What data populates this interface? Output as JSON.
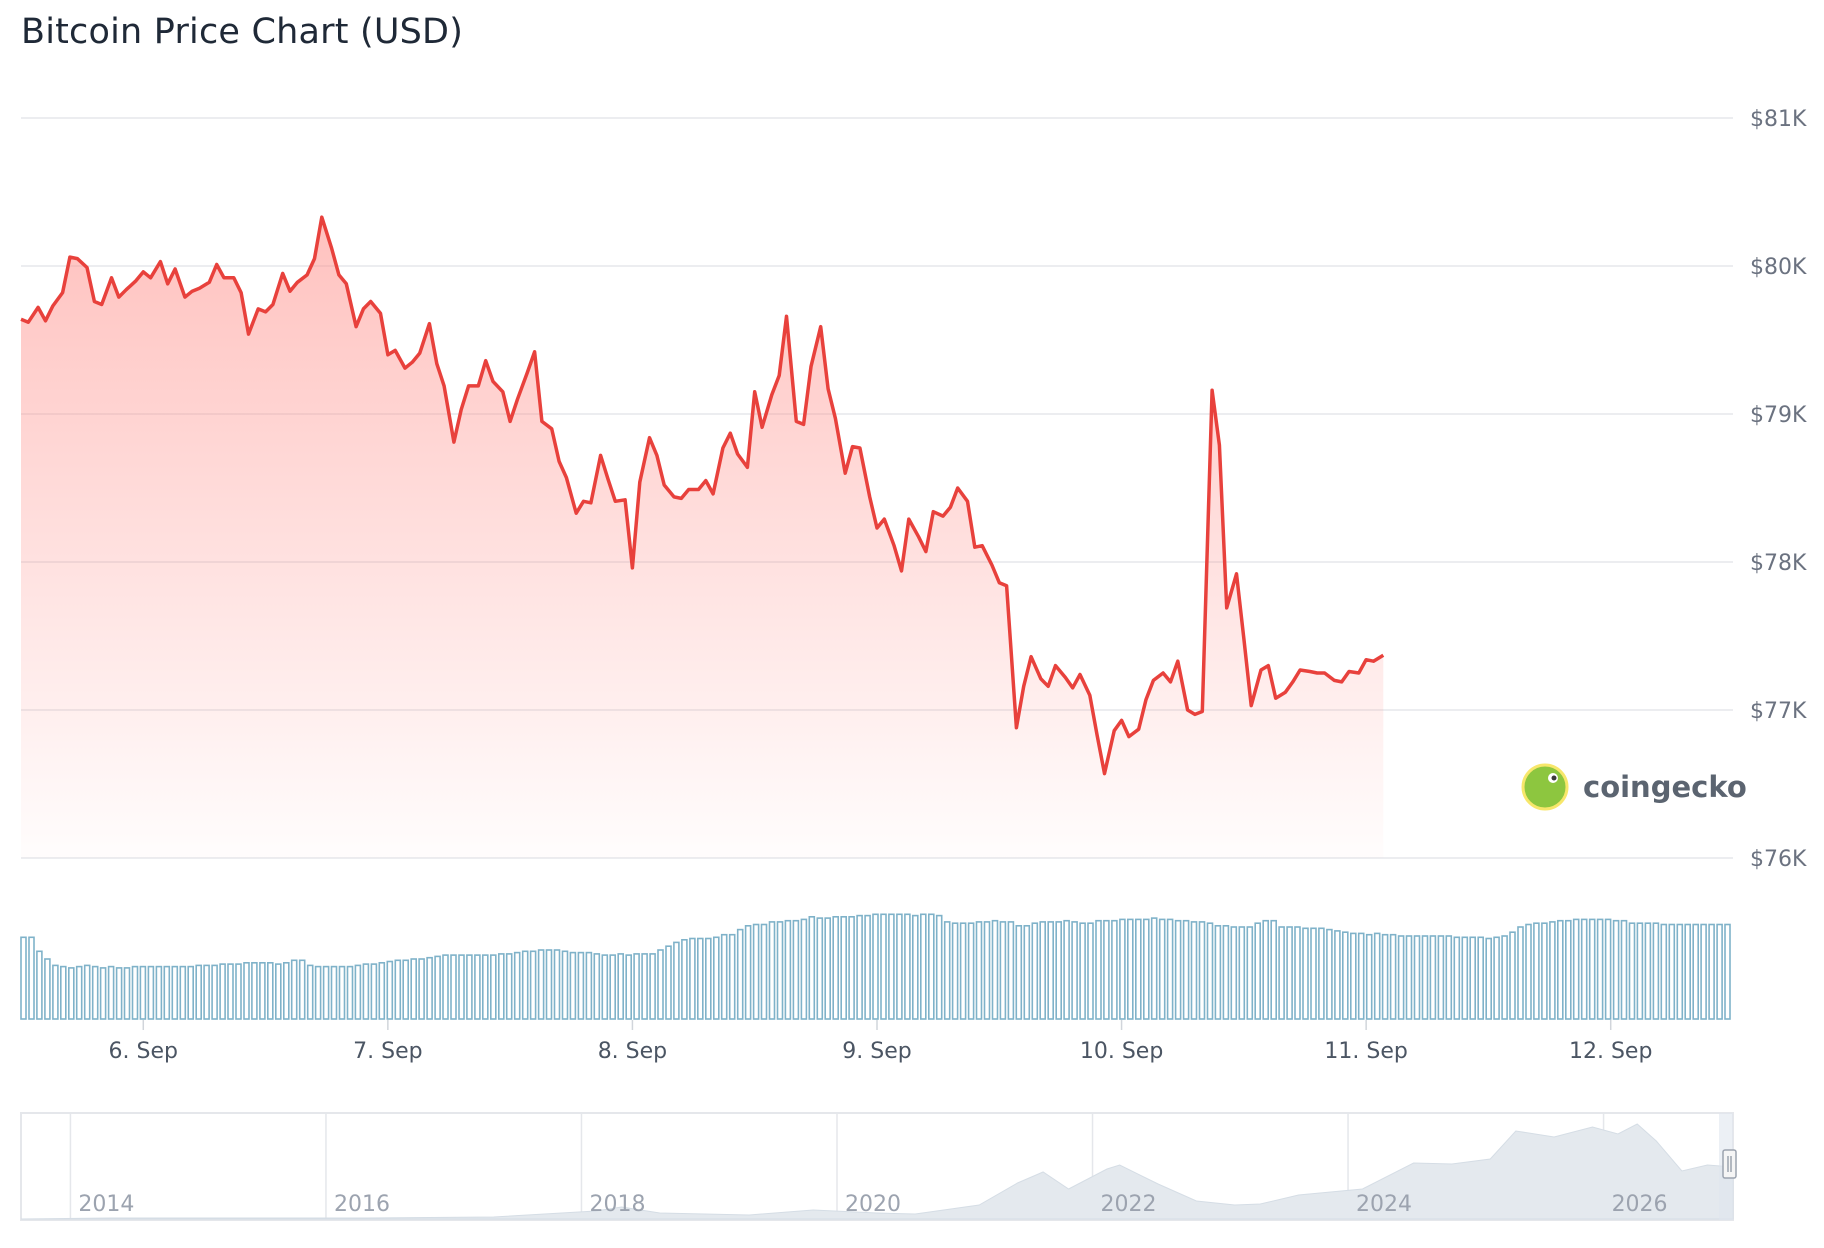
{
  "title": "Bitcoin Price Chart (USD)",
  "watermark": "coingecko",
  "colors": {
    "line": "#e8413c",
    "area_top": "#ff8f8a",
    "grid": "#e5e7eb",
    "volume_bar": "#7fb2c9",
    "navigator_fill": "#e4e9ee"
  },
  "chart_data": [
    {
      "type": "line",
      "title": "Bitcoin Price Chart (USD)",
      "ylim": [
        76000,
        81000
      ],
      "ytick_labels": [
        "$76K",
        "$77K",
        "$78K",
        "$79K",
        "$80K",
        "$81K"
      ],
      "ytick_values": [
        76000,
        77000,
        78000,
        79000,
        80000,
        81000
      ],
      "xlim": [
        5.5,
        12.5
      ],
      "xtick_labels": [
        "6. Sep",
        "7. Sep",
        "8. Sep",
        "9. Sep",
        "10. Sep",
        "11. Sep",
        "12. Sep"
      ],
      "xtick_values": [
        6,
        7,
        8,
        9,
        10,
        11,
        12
      ],
      "x_unit": "day of September",
      "grid": true,
      "legend": "none",
      "series": [
        {
          "points": [
            [
              5.5,
              79640
            ],
            [
              5.53,
              79620
            ],
            [
              5.57,
              79720
            ],
            [
              5.6,
              79630
            ],
            [
              5.63,
              79730
            ],
            [
              5.67,
              79820
            ],
            [
              5.7,
              80060
            ],
            [
              5.73,
              80050
            ],
            [
              5.77,
              79990
            ],
            [
              5.8,
              79760
            ],
            [
              5.83,
              79740
            ],
            [
              5.87,
              79920
            ],
            [
              5.9,
              79790
            ],
            [
              5.93,
              79840
            ],
            [
              5.97,
              79900
            ],
            [
              6.0,
              79960
            ],
            [
              6.03,
              79920
            ],
            [
              6.07,
              80030
            ],
            [
              6.1,
              79880
            ],
            [
              6.13,
              79980
            ],
            [
              6.17,
              79790
            ],
            [
              6.2,
              79830
            ],
            [
              6.23,
              79850
            ],
            [
              6.27,
              79890
            ],
            [
              6.3,
              80010
            ],
            [
              6.33,
              79920
            ],
            [
              6.37,
              79920
            ],
            [
              6.4,
              79820
            ],
            [
              6.43,
              79540
            ],
            [
              6.47,
              79710
            ],
            [
              6.5,
              79690
            ],
            [
              6.53,
              79740
            ],
            [
              6.57,
              79950
            ],
            [
              6.6,
              79830
            ],
            [
              6.63,
              79890
            ],
            [
              6.67,
              79940
            ],
            [
              6.7,
              80050
            ],
            [
              6.73,
              80330
            ],
            [
              6.77,
              80120
            ],
            [
              6.8,
              79940
            ],
            [
              6.83,
              79880
            ],
            [
              6.87,
              79590
            ],
            [
              6.9,
              79710
            ],
            [
              6.93,
              79760
            ],
            [
              6.97,
              79680
            ],
            [
              7.0,
              79400
            ],
            [
              7.03,
              79430
            ],
            [
              7.07,
              79310
            ],
            [
              7.1,
              79350
            ],
            [
              7.13,
              79410
            ],
            [
              7.17,
              79610
            ],
            [
              7.2,
              79340
            ],
            [
              7.23,
              79190
            ],
            [
              7.27,
              78810
            ],
            [
              7.3,
              79030
            ],
            [
              7.33,
              79190
            ],
            [
              7.37,
              79190
            ],
            [
              7.4,
              79360
            ],
            [
              7.43,
              79220
            ],
            [
              7.47,
              79150
            ],
            [
              7.5,
              78950
            ],
            [
              7.53,
              79100
            ],
            [
              7.57,
              79280
            ],
            [
              7.6,
              79420
            ],
            [
              7.63,
              78950
            ],
            [
              7.67,
              78900
            ],
            [
              7.7,
              78680
            ],
            [
              7.73,
              78570
            ],
            [
              7.77,
              78330
            ],
            [
              7.8,
              78410
            ],
            [
              7.83,
              78400
            ],
            [
              7.87,
              78720
            ],
            [
              7.9,
              78560
            ],
            [
              7.93,
              78410
            ],
            [
              7.97,
              78420
            ],
            [
              8.0,
              77960
            ],
            [
              8.03,
              78540
            ],
            [
              8.07,
              78840
            ],
            [
              8.1,
              78720
            ],
            [
              8.13,
              78520
            ],
            [
              8.17,
              78440
            ],
            [
              8.2,
              78430
            ],
            [
              8.23,
              78490
            ],
            [
              8.27,
              78490
            ],
            [
              8.3,
              78550
            ],
            [
              8.33,
              78460
            ],
            [
              8.37,
              78770
            ],
            [
              8.4,
              78870
            ],
            [
              8.43,
              78730
            ],
            [
              8.47,
              78640
            ],
            [
              8.5,
              79150
            ],
            [
              8.53,
              78910
            ],
            [
              8.57,
              79130
            ],
            [
              8.6,
              79260
            ],
            [
              8.63,
              79660
            ],
            [
              8.67,
              78950
            ],
            [
              8.7,
              78930
            ],
            [
              8.73,
              79320
            ],
            [
              8.77,
              79590
            ],
            [
              8.8,
              79170
            ],
            [
              8.83,
              78970
            ],
            [
              8.87,
              78600
            ],
            [
              8.9,
              78780
            ],
            [
              8.93,
              78770
            ],
            [
              8.97,
              78440
            ],
            [
              9.0,
              78230
            ],
            [
              9.03,
              78290
            ],
            [
              9.07,
              78110
            ],
            [
              9.1,
              77940
            ],
            [
              9.13,
              78290
            ],
            [
              9.17,
              78170
            ],
            [
              9.2,
              78070
            ],
            [
              9.23,
              78340
            ],
            [
              9.27,
              78310
            ],
            [
              9.3,
              78370
            ],
            [
              9.33,
              78500
            ],
            [
              9.37,
              78410
            ],
            [
              9.4,
              78100
            ],
            [
              9.43,
              78110
            ],
            [
              9.47,
              77980
            ],
            [
              9.5,
              77860
            ],
            [
              9.53,
              77840
            ],
            [
              9.57,
              76880
            ],
            [
              9.6,
              77160
            ],
            [
              9.63,
              77360
            ],
            [
              9.67,
              77210
            ],
            [
              9.7,
              77160
            ],
            [
              9.73,
              77300
            ],
            [
              9.77,
              77220
            ],
            [
              9.8,
              77150
            ],
            [
              9.83,
              77240
            ],
            [
              9.87,
              77100
            ],
            [
              9.9,
              76830
            ],
            [
              9.93,
              76570
            ],
            [
              9.97,
              76860
            ],
            [
              10.0,
              76930
            ],
            [
              10.03,
              76820
            ],
            [
              10.07,
              76870
            ],
            [
              10.1,
              77070
            ],
            [
              10.13,
              77200
            ],
            [
              10.17,
              77250
            ],
            [
              10.2,
              77190
            ],
            [
              10.23,
              77330
            ],
            [
              10.27,
              77000
            ],
            [
              10.3,
              76970
            ],
            [
              10.33,
              76990
            ],
            [
              10.37,
              79160
            ],
            [
              10.4,
              78790
            ],
            [
              10.43,
              77690
            ],
            [
              10.47,
              77920
            ],
            [
              10.5,
              77480
            ],
            [
              10.53,
              77030
            ],
            [
              10.57,
              77270
            ],
            [
              10.6,
              77300
            ],
            [
              10.63,
              77080
            ],
            [
              10.67,
              77120
            ],
            [
              10.7,
              77190
            ],
            [
              10.73,
              77270
            ],
            [
              10.77,
              77260
            ],
            [
              10.8,
              77250
            ],
            [
              10.83,
              77250
            ],
            [
              10.87,
              77200
            ],
            [
              10.9,
              77190
            ],
            [
              10.93,
              77260
            ],
            [
              10.97,
              77250
            ],
            [
              11.0,
              77340
            ],
            [
              11.03,
              77330
            ],
            [
              11.07,
              77370
            ]
          ]
        }
      ]
    },
    {
      "type": "bar",
      "title": "",
      "ylim": [
        0,
        1
      ],
      "x_unit": "day of September",
      "xlim": [
        5.5,
        12.5
      ],
      "values_relative": [
        0.64,
        0.64,
        0.53,
        0.47,
        0.42,
        0.41,
        0.4,
        0.41,
        0.42,
        0.41,
        0.4,
        0.41,
        0.4,
        0.4,
        0.41,
        0.41,
        0.41,
        0.41,
        0.41,
        0.41,
        0.41,
        0.41,
        0.42,
        0.42,
        0.42,
        0.43,
        0.43,
        0.43,
        0.44,
        0.44,
        0.44,
        0.44,
        0.43,
        0.44,
        0.46,
        0.46,
        0.42,
        0.41,
        0.41,
        0.41,
        0.41,
        0.41,
        0.42,
        0.43,
        0.43,
        0.44,
        0.45,
        0.46,
        0.46,
        0.47,
        0.47,
        0.48,
        0.49,
        0.5,
        0.5,
        0.5,
        0.5,
        0.5,
        0.5,
        0.5,
        0.51,
        0.51,
        0.52,
        0.53,
        0.53,
        0.54,
        0.54,
        0.54,
        0.53,
        0.52,
        0.52,
        0.52,
        0.51,
        0.5,
        0.5,
        0.51,
        0.5,
        0.51,
        0.51,
        0.51,
        0.54,
        0.57,
        0.6,
        0.62,
        0.63,
        0.63,
        0.63,
        0.64,
        0.66,
        0.66,
        0.7,
        0.73,
        0.74,
        0.74,
        0.76,
        0.76,
        0.77,
        0.77,
        0.78,
        0.8,
        0.79,
        0.79,
        0.8,
        0.8,
        0.8,
        0.81,
        0.81,
        0.82,
        0.82,
        0.82,
        0.82,
        0.82,
        0.81,
        0.82,
        0.82,
        0.81,
        0.76,
        0.75,
        0.75,
        0.75,
        0.76,
        0.76,
        0.77,
        0.76,
        0.76,
        0.73,
        0.73,
        0.75,
        0.76,
        0.76,
        0.76,
        0.77,
        0.76,
        0.75,
        0.75,
        0.77,
        0.77,
        0.77,
        0.78,
        0.78,
        0.78,
        0.78,
        0.79,
        0.78,
        0.78,
        0.77,
        0.77,
        0.76,
        0.76,
        0.75,
        0.73,
        0.73,
        0.72,
        0.72,
        0.72,
        0.75,
        0.77,
        0.77,
        0.72,
        0.72,
        0.72,
        0.71,
        0.71,
        0.71,
        0.7,
        0.69,
        0.68,
        0.67,
        0.67,
        0.66,
        0.67,
        0.66,
        0.66,
        0.65,
        0.65,
        0.65,
        0.65,
        0.65,
        0.65,
        0.65,
        0.64,
        0.64,
        0.64,
        0.64,
        0.63,
        0.64,
        0.65,
        0.68,
        0.72,
        0.74,
        0.75,
        0.75,
        0.76,
        0.77,
        0.77,
        0.78,
        0.78,
        0.78,
        0.78,
        0.78,
        0.77,
        0.77,
        0.75,
        0.75,
        0.75,
        0.75,
        0.74,
        0.74,
        0.74,
        0.74,
        0.74,
        0.74,
        0.74,
        0.74,
        0.74
      ]
    },
    {
      "type": "area",
      "title": "",
      "xtick_labels": [
        "2014",
        "2016",
        "2018",
        "2020",
        "2022",
        "2024",
        "2026"
      ],
      "xtick_values": [
        2014,
        2016,
        2018,
        2020,
        2022,
        2024,
        2026
      ],
      "xlim": [
        2013.3,
        2026.7
      ],
      "x_unit": "year",
      "values_relative": [
        [
          2013.3,
          0.0
        ],
        [
          2014.0,
          0.01
        ],
        [
          2015.0,
          0.01
        ],
        [
          2016.0,
          0.01
        ],
        [
          2017.0,
          0.02
        ],
        [
          2017.8,
          0.08
        ],
        [
          2018.0,
          0.12
        ],
        [
          2018.3,
          0.06
        ],
        [
          2019.0,
          0.04
        ],
        [
          2019.5,
          0.09
        ],
        [
          2020.0,
          0.06
        ],
        [
          2020.3,
          0.05
        ],
        [
          2020.8,
          0.14
        ],
        [
          2021.1,
          0.36
        ],
        [
          2021.3,
          0.47
        ],
        [
          2021.5,
          0.3
        ],
        [
          2021.8,
          0.5
        ],
        [
          2021.9,
          0.54
        ],
        [
          2022.2,
          0.35
        ],
        [
          2022.5,
          0.18
        ],
        [
          2022.8,
          0.14
        ],
        [
          2023.0,
          0.15
        ],
        [
          2023.3,
          0.24
        ],
        [
          2023.8,
          0.3
        ],
        [
          2024.2,
          0.56
        ],
        [
          2024.5,
          0.55
        ],
        [
          2024.8,
          0.6
        ],
        [
          2025.0,
          0.88
        ],
        [
          2025.3,
          0.82
        ],
        [
          2025.6,
          0.92
        ],
        [
          2025.8,
          0.85
        ],
        [
          2025.95,
          0.95
        ],
        [
          2026.1,
          0.78
        ],
        [
          2026.3,
          0.48
        ],
        [
          2026.5,
          0.54
        ],
        [
          2026.7,
          0.52
        ]
      ]
    }
  ]
}
